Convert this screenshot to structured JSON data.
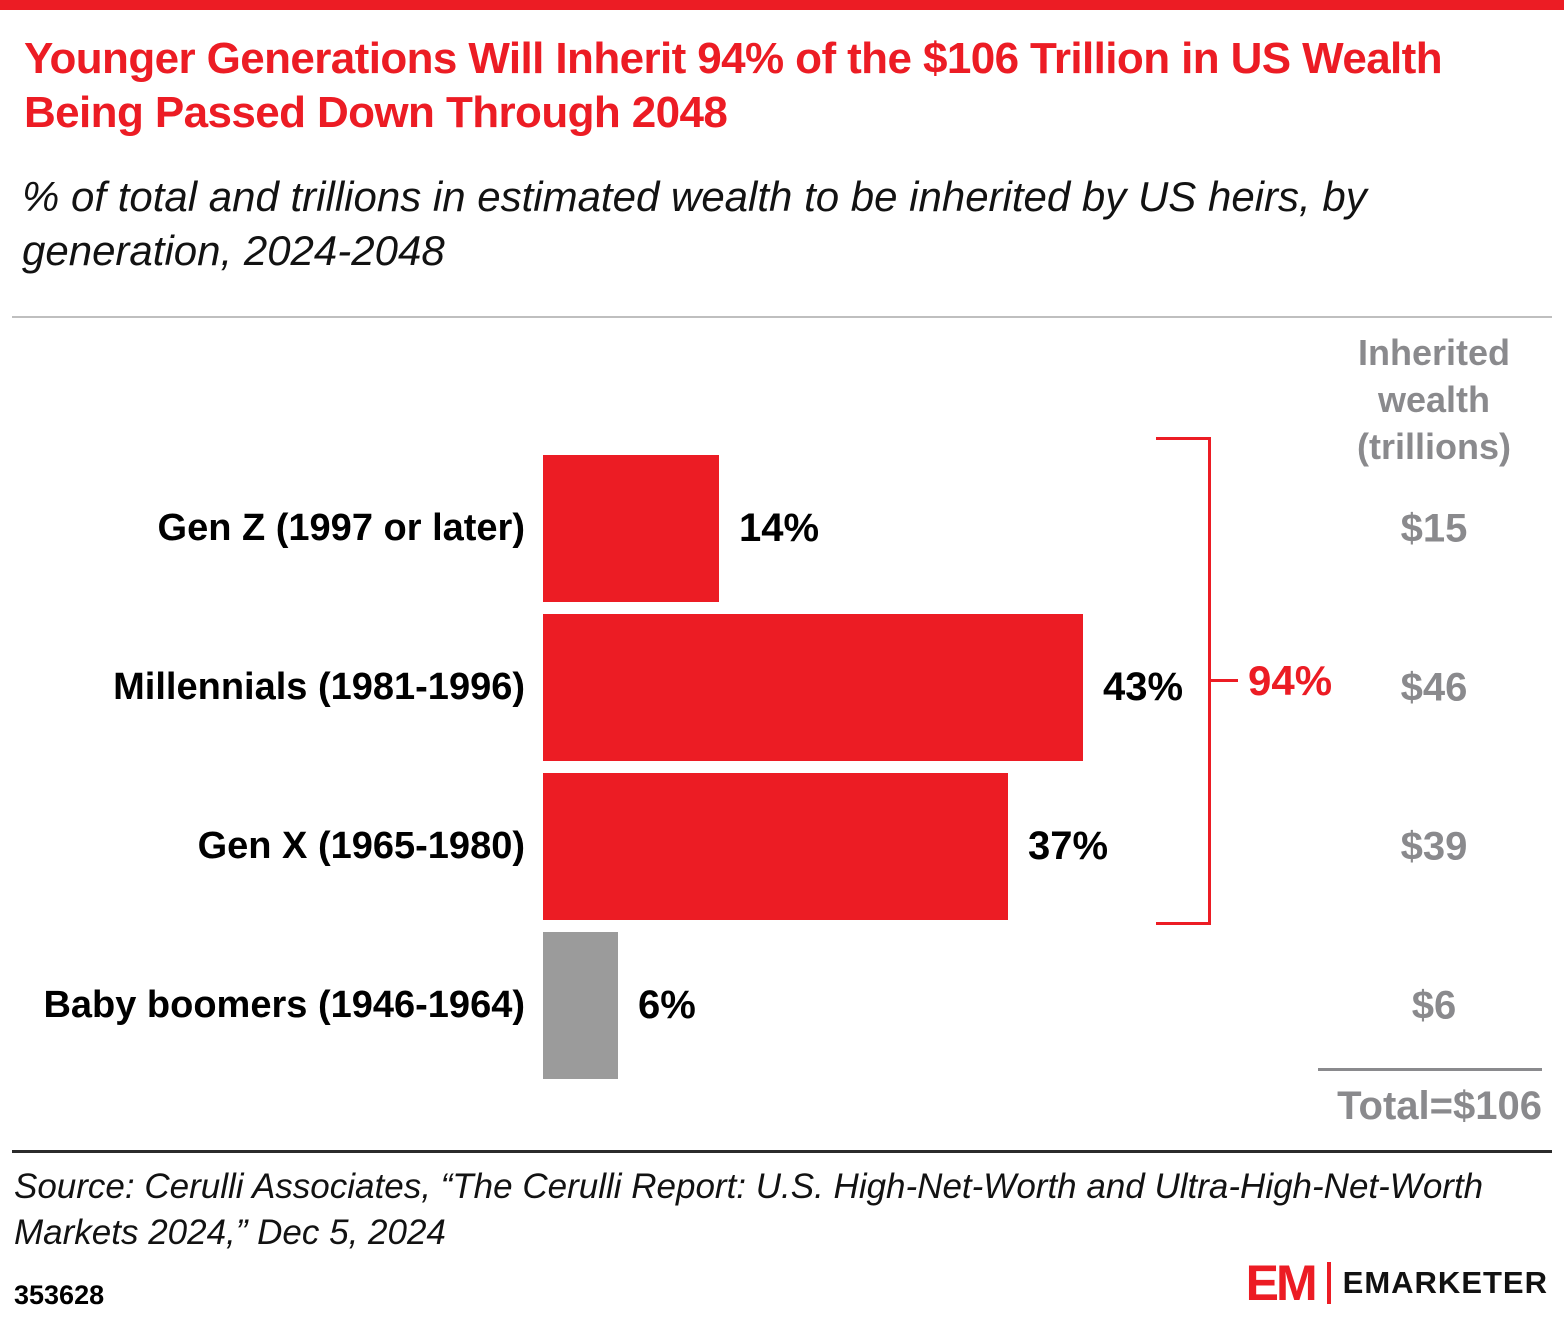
{
  "header": {
    "title": "Younger Generations Will Inherit 94% of the $106 Trillion in US Wealth Being Passed Down Through 2048",
    "subtitle": "% of total and trillions in estimated wealth to be inherited by US heirs, by generation, 2024-2048"
  },
  "chart_data": {
    "type": "bar",
    "orientation": "horizontal",
    "title": "Younger Generations Will Inherit 94% of the $106 Trillion in US Wealth Being Passed Down Through 2048",
    "categories": [
      "Gen Z (1997 or later)",
      "Millennials (1981-1996)",
      "Gen X (1965-1980)",
      "Baby boomers (1946-1964)"
    ],
    "values": [
      14,
      43,
      37,
      6
    ],
    "value_labels": [
      "14%",
      "43%",
      "37%",
      "6%"
    ],
    "wealth_trillions": [
      15,
      46,
      39,
      6
    ],
    "wealth_labels": [
      "$15",
      "$46",
      "$39",
      "$6"
    ],
    "bar_colors": [
      "#EC1C24",
      "#EC1C24",
      "#EC1C24",
      "#9B9B9B"
    ],
    "column_header": "Inherited wealth (trillions)",
    "bracket_label": "94%",
    "bracket_covers": [
      "Gen Z (1997 or later)",
      "Millennials (1981-1996)",
      "Gen X (1965-1980)"
    ],
    "total_label": "Total=$106",
    "xlim": [
      0,
      48
    ],
    "grid": false,
    "legend": "none"
  },
  "source": "Source: Cerulli Associates, “The Cerulli Report: U.S. High-Net-Worth and Ultra-High-Net-Worth Markets 2024,” Dec 5, 2024",
  "footer": {
    "id": "353628",
    "logo_text": "EM",
    "brand": "EMARKETER"
  },
  "colors": {
    "accent_red": "#EC1C24",
    "gray_bar": "#9B9B9B",
    "gray_text": "#8A8A8D"
  }
}
